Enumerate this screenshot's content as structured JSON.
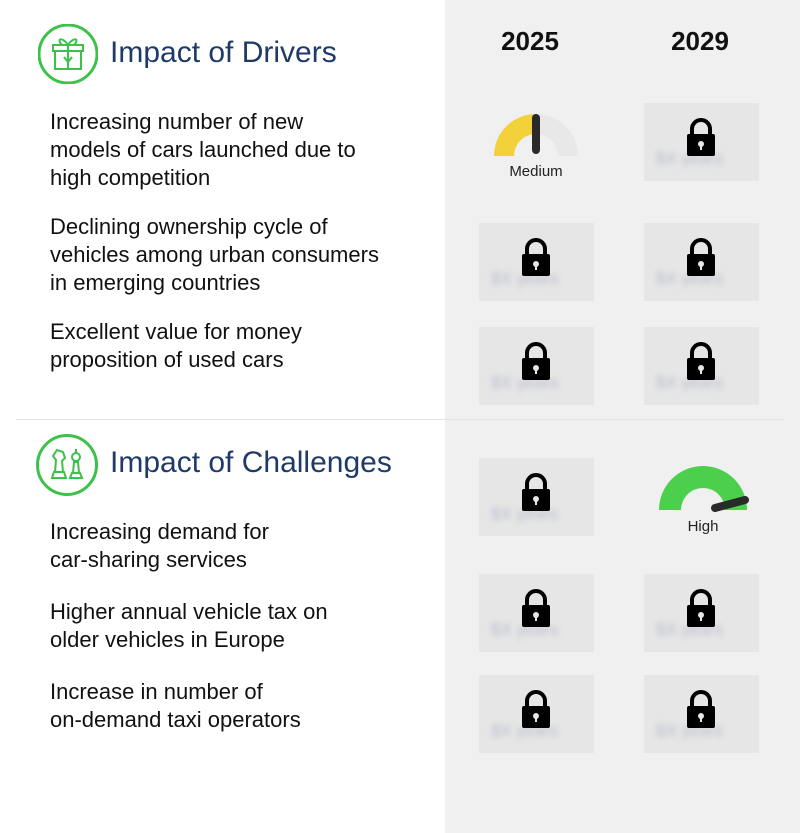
{
  "headers": {
    "year_1": "2025",
    "year_2": "2029"
  },
  "drivers": {
    "title": "Impact of Drivers",
    "rows": [
      {
        "lines": [
          "Increasing number of new",
          "models of cars launched due to",
          "high competition"
        ]
      },
      {
        "lines": [
          "Declining ownership cycle of",
          "vehicles among urban consumers",
          "in emerging countries"
        ]
      },
      {
        "lines": [
          "Excellent value for money",
          "proposition of used cars"
        ]
      }
    ]
  },
  "challenges": {
    "title": "Impact of Challenges",
    "rows": [
      {
        "lines": [
          "Increasing demand for",
          "car-sharing services"
        ]
      },
      {
        "lines": [
          "Higher annual vehicle tax on",
          "older vehicles in Europe"
        ]
      },
      {
        "lines": [
          "Increase in number of",
          "on-demand taxi operators"
        ]
      }
    ]
  },
  "gauges": {
    "medium": {
      "label": "Medium",
      "level": "medium",
      "color": "#f2d13b"
    },
    "high": {
      "label": "High",
      "level": "high",
      "color": "#4ccf4c"
    }
  },
  "locked_placeholder": "$X years",
  "colors": {
    "title": "#1f3a68",
    "icon_ring": "#3cc24a",
    "panel_bg": "#f0f0f0",
    "locked_bg": "#e6e6e6"
  },
  "icons": {
    "drivers": "gift-box-icon",
    "challenges": "chess-pieces-icon",
    "locked": "lock-icon"
  }
}
